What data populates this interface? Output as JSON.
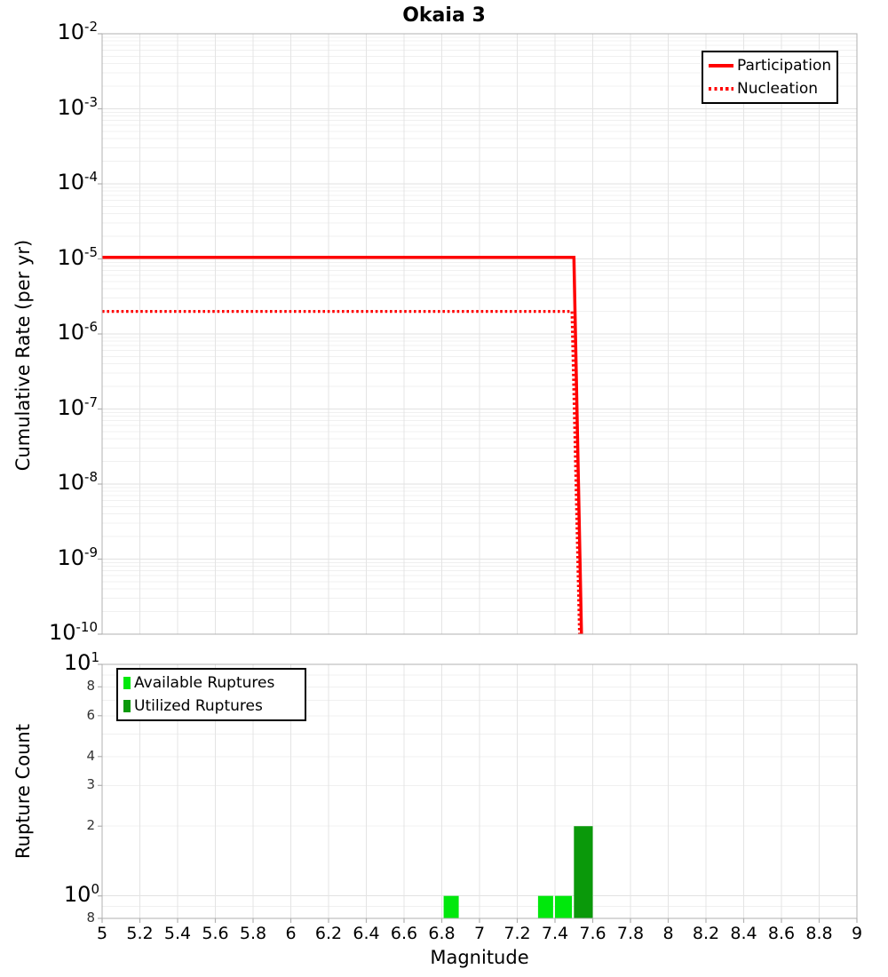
{
  "figure": {
    "title": "Okaia 3",
    "background": "#ffffff"
  },
  "colors": {
    "participation": "#ff0000",
    "nucleation": "#ff0000",
    "available": "#00e80c",
    "utilized": "#0a990a",
    "frame": "#b0b0b0",
    "grid_vertical": "#e4e4e4",
    "grid_major": "#e2e2e2",
    "grid_minor": "#f0f0f0",
    "minor_tick_text": "#333333"
  },
  "chart_data": [
    {
      "type": "line",
      "title": "Okaia 3",
      "xlabel": "",
      "ylabel": "Cumulative Rate (per yr)",
      "xscale": "linear",
      "yscale": "log",
      "xlim": [
        5,
        9
      ],
      "ylim": [
        1e-10,
        0.01
      ],
      "grid": true,
      "legend_position": "top-right",
      "y_ticks": [
        {
          "base": "10",
          "exp": "-2",
          "value": 0.01
        },
        {
          "base": "10",
          "exp": "-3",
          "value": 0.001
        },
        {
          "base": "10",
          "exp": "-4",
          "value": 0.0001
        },
        {
          "base": "10",
          "exp": "-5",
          "value": 1e-05
        },
        {
          "base": "10",
          "exp": "-6",
          "value": 1e-06
        },
        {
          "base": "10",
          "exp": "-7",
          "value": 1e-07
        },
        {
          "base": "10",
          "exp": "-8",
          "value": 1e-08
        },
        {
          "base": "10",
          "exp": "-9",
          "value": 1e-09
        },
        {
          "base": "10",
          "exp": "-10",
          "value": 1e-10
        }
      ],
      "legend": [
        {
          "label": "Participation",
          "style": "solid"
        },
        {
          "label": "Nucleation",
          "style": "dotted"
        }
      ],
      "series": [
        {
          "name": "Participation",
          "style": "solid",
          "color": "#ff0000",
          "points": [
            [
              5.0,
              1.05e-05
            ],
            [
              7.5,
              1.05e-05
            ],
            [
              7.54,
              1e-10
            ]
          ]
        },
        {
          "name": "Nucleation",
          "style": "dotted",
          "color": "#ff0000",
          "points": [
            [
              5.0,
              2e-06
            ],
            [
              7.49,
              2e-06
            ],
            [
              7.53,
              1e-10
            ]
          ]
        }
      ]
    },
    {
      "type": "bar",
      "title": "",
      "xlabel": "Magnitude",
      "ylabel": "Rupture Count",
      "xscale": "linear",
      "yscale": "log",
      "xlim": [
        5,
        9
      ],
      "ylim": [
        0.8,
        10
      ],
      "grid": true,
      "legend_position": "top-left",
      "x_ticks": {
        "start": 5,
        "step": 0.2,
        "labels": [
          "5",
          "5.2",
          "5.4",
          "5.6",
          "5.8",
          "6",
          "6.2",
          "6.4",
          "6.6",
          "6.8",
          "7",
          "7.2",
          "7.4",
          "7.6",
          "7.8",
          "8",
          "8.2",
          "8.4",
          "8.6",
          "8.8",
          "9"
        ]
      },
      "y_major_ticks": [
        {
          "base": "10",
          "exp": "1",
          "value": 10
        },
        {
          "base": "10",
          "exp": "0",
          "value": 1
        }
      ],
      "y_minor_ticks": [
        {
          "label": "8",
          "value": 8
        },
        {
          "label": "6",
          "value": 6
        },
        {
          "label": "4",
          "value": 4
        },
        {
          "label": "3",
          "value": 3
        },
        {
          "label": "2",
          "value": 2
        },
        {
          "label": "8",
          "value": 0.8
        }
      ],
      "legend": [
        {
          "label": "Available Ruptures",
          "color": "#00e80c"
        },
        {
          "label": "Utilized Ruptures",
          "color": "#0a990a"
        }
      ],
      "bars": [
        {
          "x0": 6.81,
          "x1": 6.89,
          "count": 1,
          "series": "available"
        },
        {
          "x0": 7.31,
          "x1": 7.39,
          "count": 1,
          "series": "available"
        },
        {
          "x0": 7.4,
          "x1": 7.49,
          "count": 1,
          "series": "available"
        },
        {
          "x0": 7.5,
          "x1": 7.6,
          "count": 2,
          "series": "utilized"
        }
      ]
    }
  ]
}
